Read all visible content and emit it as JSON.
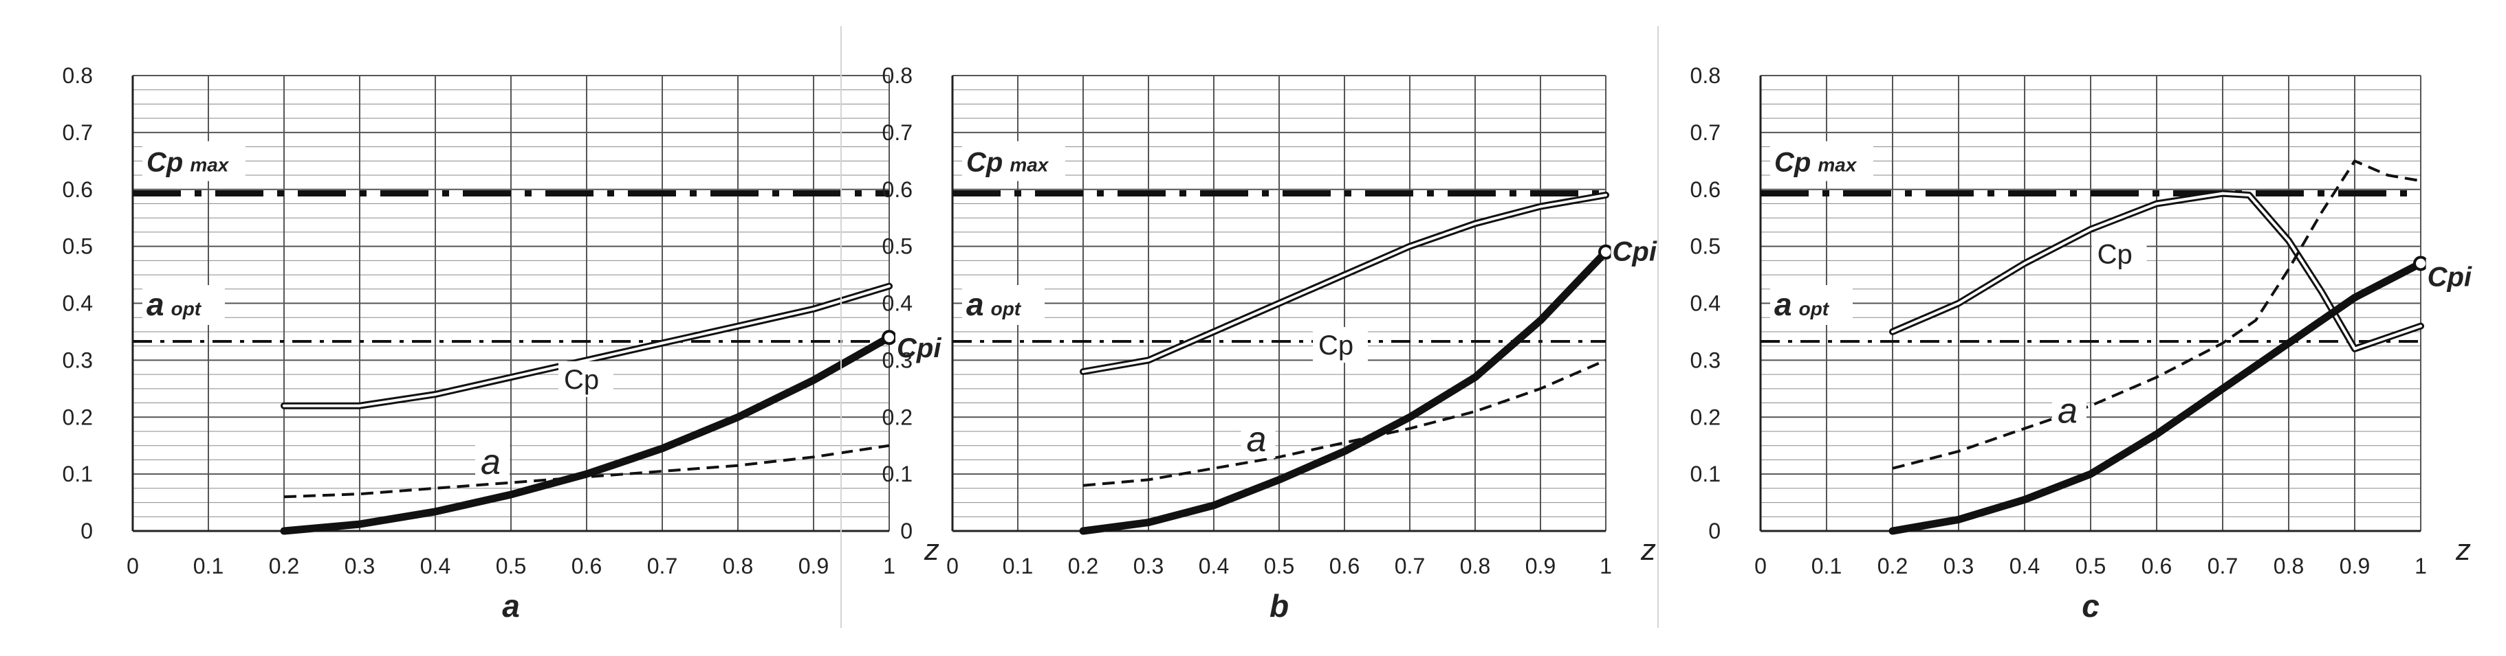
{
  "colors": {
    "background": "#ffffff",
    "grid": "#555555",
    "curve": "#111111"
  },
  "chart_data": [
    {
      "type": "line",
      "title": "a",
      "xlabel": "z",
      "ylabel": "",
      "xlim": [
        0,
        1
      ],
      "ylim": [
        0,
        0.8
      ],
      "x_ticks": [
        "0",
        "0.1",
        "0.2",
        "0.3",
        "0.4",
        "0.5",
        "0.6",
        "0.7",
        "0.8",
        "0.9",
        "1"
      ],
      "y_ticks": [
        "0",
        "0.1",
        "0.2",
        "0.3",
        "0.4",
        "0.5",
        "0.6",
        "0.7",
        "0.8"
      ],
      "grid": "major vertical and horizontal, minor horizontal",
      "series": [
        {
          "name": "Cp",
          "style": "double",
          "x": [
            0.2,
            0.3,
            0.4,
            0.5,
            0.6,
            0.7,
            0.8,
            0.9,
            1.0
          ],
          "y": [
            0.22,
            0.22,
            0.24,
            0.27,
            0.3,
            0.33,
            0.36,
            0.39,
            0.43
          ]
        },
        {
          "name": "a",
          "style": "dashed",
          "x": [
            0.2,
            0.3,
            0.4,
            0.5,
            0.6,
            0.7,
            0.8,
            0.9,
            1.0
          ],
          "y": [
            0.06,
            0.065,
            0.075,
            0.085,
            0.095,
            0.105,
            0.115,
            0.13,
            0.15
          ]
        },
        {
          "name": "Cpi",
          "style": "thick",
          "x": [
            0.2,
            0.3,
            0.4,
            0.5,
            0.6,
            0.7,
            0.8,
            0.9,
            1.0
          ],
          "y": [
            0.0,
            0.012,
            0.034,
            0.064,
            0.1,
            0.145,
            0.2,
            0.265,
            0.34
          ]
        }
      ],
      "reference_lines": [
        {
          "label": "Cp",
          "sub": "max",
          "y": 0.593,
          "style": "dash-dot-thick"
        },
        {
          "label": "a",
          "sub": "opt",
          "y": 0.333,
          "style": "dash-dot-thin"
        }
      ],
      "labels": {
        "cp": "Cp",
        "a": "a",
        "cpi": "Cpi"
      }
    },
    {
      "type": "line",
      "title": "b",
      "xlabel": "z",
      "ylabel": "",
      "xlim": [
        0,
        1
      ],
      "ylim": [
        0,
        0.8
      ],
      "x_ticks": [
        "0",
        "0.1",
        "0.2",
        "0.3",
        "0.4",
        "0.5",
        "0.6",
        "0.7",
        "0.8",
        "0.9",
        "1"
      ],
      "y_ticks": [
        "0",
        "0.1",
        "0.2",
        "0.3",
        "0.4",
        "0.5",
        "0.6",
        "0.7",
        "0.8"
      ],
      "grid": "major vertical and horizontal, minor horizontal",
      "series": [
        {
          "name": "Cp",
          "style": "double",
          "x": [
            0.2,
            0.3,
            0.4,
            0.5,
            0.6,
            0.7,
            0.8,
            0.9,
            1.0
          ],
          "y": [
            0.28,
            0.3,
            0.35,
            0.4,
            0.45,
            0.5,
            0.54,
            0.57,
            0.59
          ]
        },
        {
          "name": "a",
          "style": "dashed",
          "x": [
            0.2,
            0.3,
            0.4,
            0.5,
            0.6,
            0.7,
            0.8,
            0.9,
            1.0
          ],
          "y": [
            0.08,
            0.09,
            0.11,
            0.13,
            0.155,
            0.18,
            0.21,
            0.25,
            0.3
          ]
        },
        {
          "name": "Cpi",
          "style": "thick",
          "x": [
            0.2,
            0.3,
            0.4,
            0.5,
            0.6,
            0.7,
            0.8,
            0.9,
            1.0
          ],
          "y": [
            0.0,
            0.015,
            0.045,
            0.09,
            0.14,
            0.2,
            0.27,
            0.37,
            0.49
          ]
        }
      ],
      "reference_lines": [
        {
          "label": "Cp",
          "sub": "max",
          "y": 0.593,
          "style": "dash-dot-thick"
        },
        {
          "label": "a",
          "sub": "opt",
          "y": 0.333,
          "style": "dash-dot-thin"
        }
      ],
      "labels": {
        "cp": "Cp",
        "a": "a",
        "cpi": "Cpi"
      }
    },
    {
      "type": "line",
      "title": "c",
      "xlabel": "z",
      "ylabel": "",
      "xlim": [
        0,
        1
      ],
      "ylim": [
        0,
        0.8
      ],
      "x_ticks": [
        "0",
        "0.1",
        "0.2",
        "0.3",
        "0.4",
        "0.5",
        "0.6",
        "0.7",
        "0.8",
        "0.9",
        "1"
      ],
      "y_ticks": [
        "0",
        "0.1",
        "0.2",
        "0.3",
        "0.4",
        "0.5",
        "0.6",
        "0.7",
        "0.8"
      ],
      "grid": "major vertical and horizontal, minor horizontal",
      "series": [
        {
          "name": "Cp",
          "style": "double",
          "x": [
            0.2,
            0.3,
            0.4,
            0.5,
            0.6,
            0.7,
            0.74,
            0.8,
            0.85,
            0.9,
            0.95,
            1.0
          ],
          "y": [
            0.35,
            0.4,
            0.47,
            0.53,
            0.575,
            0.593,
            0.59,
            0.51,
            0.42,
            0.32,
            0.34,
            0.36
          ]
        },
        {
          "name": "a",
          "style": "dashed",
          "x": [
            0.2,
            0.3,
            0.4,
            0.5,
            0.6,
            0.7,
            0.75,
            0.8,
            0.85,
            0.9,
            0.95,
            1.0
          ],
          "y": [
            0.11,
            0.14,
            0.18,
            0.22,
            0.27,
            0.33,
            0.37,
            0.46,
            0.56,
            0.65,
            0.625,
            0.615
          ]
        },
        {
          "name": "Cpi",
          "style": "thick",
          "x": [
            0.2,
            0.3,
            0.4,
            0.5,
            0.6,
            0.7,
            0.8,
            0.9,
            1.0
          ],
          "y": [
            0.0,
            0.02,
            0.055,
            0.1,
            0.17,
            0.25,
            0.33,
            0.41,
            0.47
          ]
        }
      ],
      "reference_lines": [
        {
          "label": "Cp",
          "sub": "max",
          "y": 0.593,
          "style": "dash-dot-thick"
        },
        {
          "label": "a",
          "sub": "opt",
          "y": 0.333,
          "style": "dash-dot-thin"
        }
      ],
      "labels": {
        "cp": "Cp",
        "a": "a",
        "cpi": "Cpi"
      }
    }
  ]
}
